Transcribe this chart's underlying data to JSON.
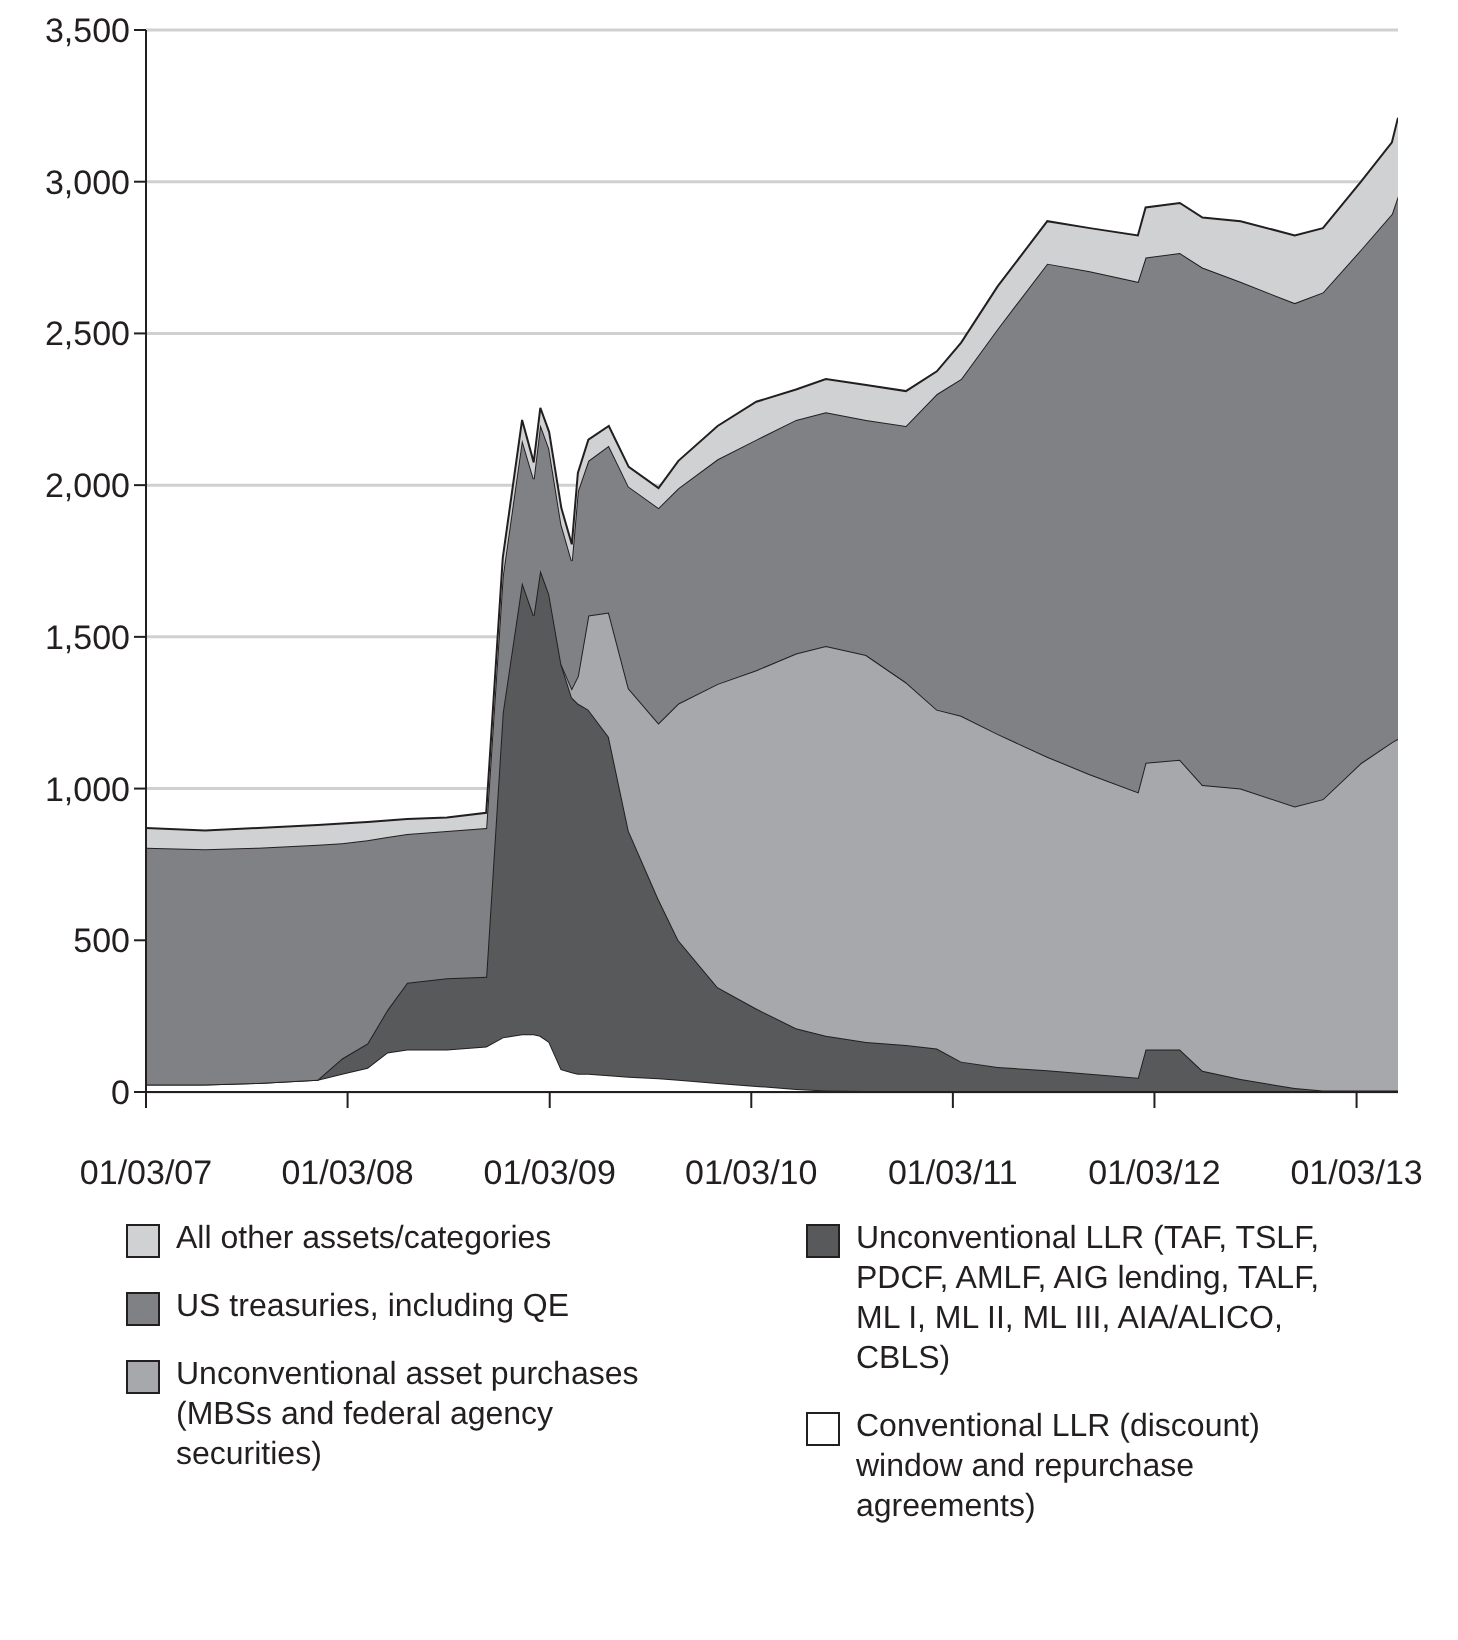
{
  "chart_data": {
    "type": "area",
    "stacked": true,
    "x": [
      "2007-01-03",
      "2007-04-20",
      "2007-07-25",
      "2007-11-10",
      "2007-12-24",
      "2008-02-08",
      "2008-03-15",
      "2008-04-20",
      "2008-07-01",
      "2008-09-10",
      "2008-10-10",
      "2008-11-14",
      "2008-12-05",
      "2008-12-17",
      "2009-01-02",
      "2009-01-24",
      "2009-02-12",
      "2009-02-23",
      "2009-03-14",
      "2009-04-20",
      "2009-05-26",
      "2009-07-19",
      "2009-08-24",
      "2009-11-03",
      "2010-01-12",
      "2010-03-25",
      "2010-05-18",
      "2010-07-30",
      "2010-10-10",
      "2010-12-05",
      "2011-01-18",
      "2011-03-25",
      "2011-06-23",
      "2011-09-08",
      "2011-12-04",
      "2011-12-18",
      "2012-02-18",
      "2012-03-30",
      "2012-06-07",
      "2012-09-13",
      "2012-11-03",
      "2013-01-11",
      "2013-03-08",
      "2013-03-19"
    ],
    "series": [
      {
        "name": "Conventional LLR (discount) window and repurchase agreements)",
        "color": "#ffffff",
        "values": [
          25,
          25,
          30,
          40,
          60,
          80,
          130,
          140,
          140,
          150,
          180,
          190,
          190,
          185,
          165,
          75,
          65,
          60,
          60,
          55,
          50,
          45,
          40,
          30,
          20,
          10,
          5,
          3,
          2,
          2,
          2,
          1,
          1,
          1,
          1,
          1,
          1,
          1,
          1,
          1,
          1,
          1,
          1,
          1
        ]
      },
      {
        "name": "Unconventional LLR (TAF, TSLF, PDCF, AMLF, AIG lending, TALF, ML I, ML II, ML III, AIA/ALICO, CBLS)",
        "color": "#58595b",
        "values": [
          0,
          0,
          0,
          0,
          50,
          80,
          140,
          220,
          235,
          230,
          1070,
          1490,
          1380,
          1535,
          1475,
          1335,
          1235,
          1220,
          1200,
          1115,
          810,
          590,
          460,
          315,
          255,
          200,
          180,
          162,
          153,
          141,
          98,
          81,
          71,
          59,
          46,
          139,
          139,
          69,
          42,
          12,
          4,
          4,
          4,
          4
        ]
      },
      {
        "name": "Unconventional asset purchases (MBSs and federal agency securities)",
        "color": "#a7a8ab",
        "values": [
          null,
          null,
          null,
          null,
          null,
          null,
          null,
          null,
          null,
          null,
          null,
          null,
          null,
          null,
          null,
          0,
          30,
          90,
          310,
          410,
          470,
          580,
          780,
          1000,
          1115,
          1235,
          1285,
          1275,
          1195,
          1117,
          1140,
          1098,
          1033,
          987,
          941,
          945,
          955,
          942,
          957,
          928,
          960,
          1079,
          1148,
          1159
        ]
      },
      {
        "name": "US treasuries, including QE",
        "color": "#808185",
        "values": [
          780,
          775,
          775,
          775,
          710,
          670,
          570,
          490,
          485,
          490,
          450,
          470,
          450,
          480,
          480,
          460,
          420,
          610,
          510,
          550,
          665,
          710,
          710,
          740,
          760,
          770,
          770,
          775,
          845,
          1040,
          1110,
          1335,
          1625,
          1658,
          1682,
          1665,
          1670,
          1705,
          1670,
          1659,
          1670,
          1692,
          1741,
          1788
        ]
      },
      {
        "name": "All other assets/categories",
        "color": "#d0d1d3",
        "values": [
          65,
          62,
          65,
          65,
          65,
          60,
          55,
          50,
          45,
          50,
          60,
          65,
          55,
          55,
          55,
          55,
          55,
          60,
          70,
          65,
          65,
          65,
          90,
          110,
          125,
          100,
          110,
          115,
          115,
          75,
          120,
          140,
          140,
          142,
          153,
          165,
          165,
          165,
          200,
          223,
          212,
          224,
          236,
          259
        ]
      }
    ],
    "xlim": [
      "2007-01-03",
      "2013-03-19"
    ],
    "xticks": [
      {
        "value": "2007-01-03",
        "label": "01/03/07"
      },
      {
        "value": "2008-01-03",
        "label": "01/03/08"
      },
      {
        "value": "2009-01-03",
        "label": "01/03/09"
      },
      {
        "value": "2010-01-03",
        "label": "01/03/10"
      },
      {
        "value": "2011-01-03",
        "label": "01/03/11"
      },
      {
        "value": "2012-01-03",
        "label": "01/03/12"
      },
      {
        "value": "2013-01-03",
        "label": "01/03/13"
      }
    ],
    "ylim": [
      0,
      3500
    ],
    "yticks": [
      0,
      500,
      {
        "value": 1000,
        "label": "1,000"
      },
      {
        "value": 1500,
        "label": "1,500"
      },
      {
        "value": 2000,
        "label": "2,000"
      },
      {
        "value": 2500,
        "label": "2,500"
      },
      {
        "value": 3000,
        "label": "3,000"
      },
      {
        "value": 3500,
        "label": "3,500"
      }
    ],
    "grid": "y",
    "legend": "bottom"
  }
}
